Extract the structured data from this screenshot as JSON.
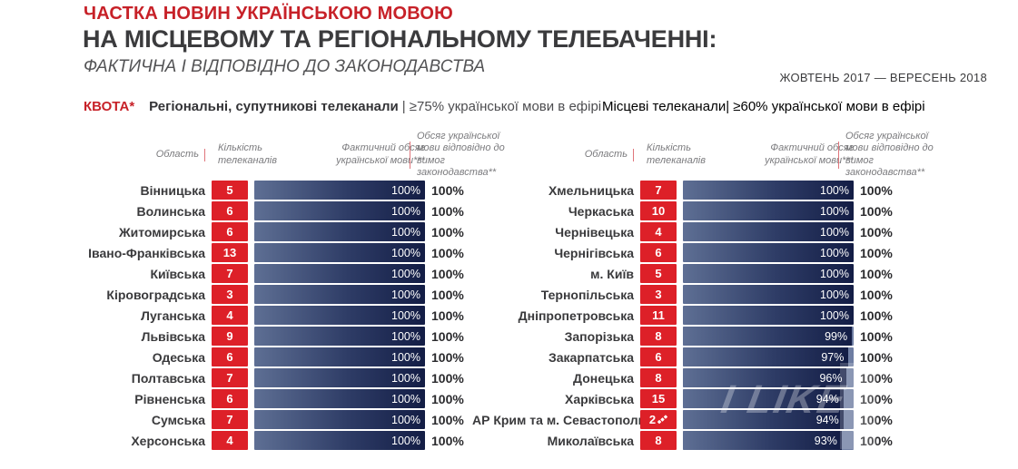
{
  "header": {
    "kicker": "ЧАСТКА НОВИН УКРАЇНСЬКОЮ МОВОЮ",
    "title": "НА МІСЦЕВОМУ ТА РЕГІОНАЛЬНОМУ ТЕЛЕБАЧЕННІ:",
    "subtitle": "ФАКТИЧНА І ВІДПОВІДНО ДО ЗАКОНОДАВСТВА",
    "period": "ЖОВТЕНЬ 2017 — ВЕРЕСЕНЬ 2018"
  },
  "quota": {
    "label": "КВОТА*",
    "left": {
      "channels": "Регіональні, супутникові телеканали",
      "rule": "| ≥75% української мови в ефірі"
    },
    "right": {
      "channels": "Місцеві телеканали",
      "rule": "| ≥60% української мови в ефірі"
    }
  },
  "columns": {
    "region": "Область",
    "channels": "Кількість телеканалів",
    "actual": "Фактичний обсяг української мови***",
    "law": "Обсяг української мови відповідно до вимог законодавства**"
  },
  "colors": {
    "accent_red": "#dd2028",
    "bar_dark": "#131d45",
    "bar_light": "#5e6f94",
    "track_unfilled": "#6e7da2"
  },
  "watermark": {
    "text": "I LIKE"
  },
  "chart_data": [
    {
      "type": "bar",
      "title": "Регіональні, супутникові телеканали",
      "quota": "≥75% української мови в ефірі",
      "unit": "%",
      "xlim": [
        0,
        100
      ],
      "columns": [
        "Область",
        "Кількість телеканалів",
        "Фактичний обсяг української мови***",
        "Обсяг української мови відповідно до вимог законодавства**"
      ],
      "rows": [
        {
          "region": "Вінницька",
          "channels": 5,
          "actual_pct": 100,
          "law_pct": 100
        },
        {
          "region": "Волинська",
          "channels": 6,
          "actual_pct": 100,
          "law_pct": 100
        },
        {
          "region": "Житомирська",
          "channels": 6,
          "actual_pct": 100,
          "law_pct": 100
        },
        {
          "region": "Івано-Франківська",
          "channels": 13,
          "actual_pct": 100,
          "law_pct": 100
        },
        {
          "region": "Київська",
          "channels": 7,
          "actual_pct": 100,
          "law_pct": 100
        },
        {
          "region": "Кіровоградська",
          "channels": 3,
          "actual_pct": 100,
          "law_pct": 100
        },
        {
          "region": "Луганська",
          "channels": 4,
          "actual_pct": 100,
          "law_pct": 100
        },
        {
          "region": "Львівська",
          "channels": 9,
          "actual_pct": 100,
          "law_pct": 100
        },
        {
          "region": "Одеська",
          "channels": 6,
          "actual_pct": 100,
          "law_pct": 100
        },
        {
          "region": "Полтавська",
          "channels": 7,
          "actual_pct": 100,
          "law_pct": 100
        },
        {
          "region": "Рівненська",
          "channels": 6,
          "actual_pct": 100,
          "law_pct": 100
        },
        {
          "region": "Сумська",
          "channels": 7,
          "actual_pct": 100,
          "law_pct": 100
        },
        {
          "region": "Херсонська",
          "channels": 4,
          "actual_pct": 100,
          "law_pct": 100
        }
      ]
    },
    {
      "type": "bar",
      "title": "Місцеві телеканали",
      "quota": "≥60% української мови в ефірі",
      "unit": "%",
      "xlim": [
        0,
        100
      ],
      "columns": [
        "Область",
        "Кількість телеканалів",
        "Фактичний обсяг української мови***",
        "Обсяг української мови відповідно до вимог законодавства**"
      ],
      "rows": [
        {
          "region": "Хмельницька",
          "channels": 7,
          "actual_pct": 100,
          "law_pct": 100
        },
        {
          "region": "Черкаська",
          "channels": 10,
          "actual_pct": 100,
          "law_pct": 100
        },
        {
          "region": "Чернівецька",
          "channels": 4,
          "actual_pct": 100,
          "law_pct": 100
        },
        {
          "region": "Чернігівська",
          "channels": 6,
          "actual_pct": 100,
          "law_pct": 100
        },
        {
          "region": "м. Київ",
          "channels": 5,
          "actual_pct": 100,
          "law_pct": 100
        },
        {
          "region": "Тернопільська",
          "channels": 3,
          "actual_pct": 100,
          "law_pct": 100
        },
        {
          "region": "Дніпропетровська",
          "channels": 11,
          "actual_pct": 100,
          "law_pct": 100
        },
        {
          "region": "Запорізька",
          "channels": 8,
          "actual_pct": 99,
          "law_pct": 100
        },
        {
          "region": "Закарпатська",
          "channels": 6,
          "actual_pct": 97,
          "law_pct": 100
        },
        {
          "region": "Донецька",
          "channels": 8,
          "actual_pct": 96,
          "law_pct": 100
        },
        {
          "region": "Харківська",
          "channels": 15,
          "actual_pct": 94,
          "law_pct": 100
        },
        {
          "region": "АР Крим та м. Севастополь",
          "channels": 2,
          "satellite_icon": true,
          "actual_pct": 94,
          "law_pct": 100
        },
        {
          "region": "Миколаївська",
          "channels": 8,
          "actual_pct": 93,
          "law_pct": 100
        }
      ]
    }
  ]
}
